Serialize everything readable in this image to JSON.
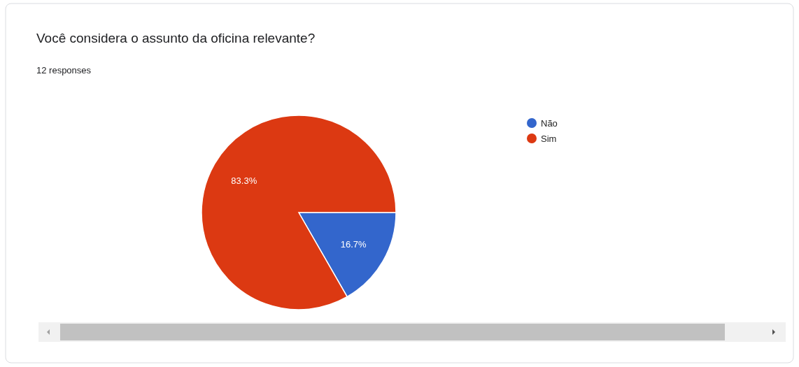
{
  "chart_data": {
    "type": "pie",
    "title": "Você considera o assunto da oficina relevante?",
    "subtitle": "12 responses",
    "categories": [
      "Não",
      "Sim"
    ],
    "values": [
      16.7,
      83.3
    ],
    "colors": [
      "#3366cc",
      "#dc3912"
    ],
    "value_labels": [
      "16.7%",
      "83.3%"
    ],
    "legend": "right"
  }
}
